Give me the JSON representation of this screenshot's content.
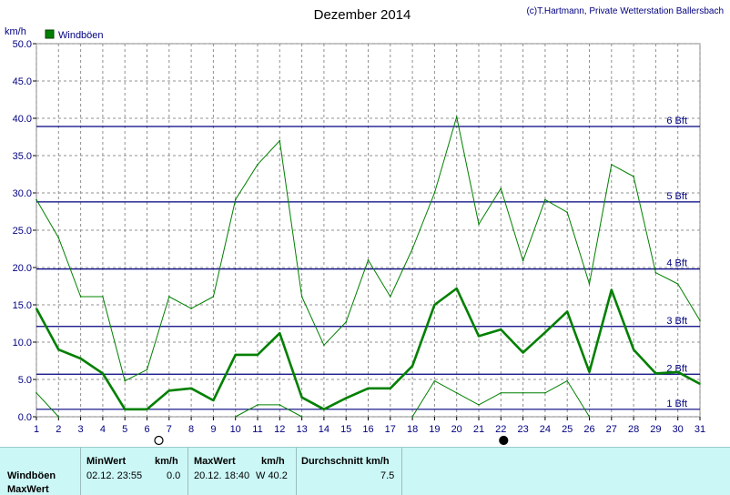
{
  "title": "Dezember 2014",
  "credit": "(c)T.Hartmann, Private Wetterstation Ballersbach",
  "chart_data": {
    "type": "line",
    "ylabel": "km/h",
    "ylim": [
      0,
      50
    ],
    "yticks": [
      "0.0",
      "5.0",
      "10.0",
      "15.0",
      "20.0",
      "25.0",
      "30.0",
      "35.0",
      "40.0",
      "45.0",
      "50.0"
    ],
    "x": [
      1,
      2,
      3,
      4,
      5,
      6,
      7,
      8,
      9,
      10,
      11,
      12,
      13,
      14,
      15,
      16,
      17,
      18,
      19,
      20,
      21,
      22,
      23,
      24,
      25,
      26,
      27,
      28,
      29,
      30,
      31
    ],
    "series": [
      {
        "name": "Windböen",
        "role": "avg",
        "color": "#008000",
        "values": [
          14.5,
          9.0,
          7.8,
          5.8,
          1.0,
          1.0,
          3.5,
          3.8,
          2.2,
          8.3,
          8.3,
          11.2,
          2.6,
          1.0,
          2.5,
          3.8,
          3.8,
          6.8,
          15.0,
          17.2,
          10.8,
          11.7,
          8.6,
          11.3,
          14.1,
          6.0,
          17.0,
          9.0,
          5.8,
          6.0,
          4.4
        ]
      },
      {
        "name": "",
        "role": "max",
        "color": "#008000",
        "values": [
          29.1,
          24.0,
          16.1,
          16.1,
          4.8,
          6.3,
          16.1,
          14.5,
          16.1,
          29.1,
          33.8,
          37.0,
          16.1,
          9.6,
          12.7,
          21.0,
          16.1,
          22.5,
          30.0,
          40.2,
          25.8,
          30.6,
          20.9,
          29.1,
          27.4,
          17.8,
          33.8,
          32.2,
          19.3,
          17.8,
          12.9
        ]
      },
      {
        "name": "",
        "role": "min",
        "color": "#008000",
        "values": [
          3.2,
          0.0,
          null,
          null,
          null,
          null,
          null,
          null,
          null,
          0.0,
          1.6,
          1.6,
          0.0,
          null,
          null,
          null,
          null,
          0.0,
          4.8,
          3.2,
          1.6,
          3.2,
          3.2,
          3.2,
          4.8,
          0.0,
          null,
          null,
          null,
          null,
          null
        ]
      }
    ],
    "beaufort": [
      {
        "label": "1 Bft",
        "value": 1.0
      },
      {
        "label": "2 Bft",
        "value": 5.7
      },
      {
        "label": "3 Bft",
        "value": 12.1
      },
      {
        "label": "4 Bft",
        "value": 19.8
      },
      {
        "label": "5 Bft",
        "value": 28.8
      },
      {
        "label": "6 Bft",
        "value": 38.9
      }
    ],
    "moon": [
      {
        "day": 6,
        "phase": "full"
      },
      {
        "day": 22,
        "phase": "new"
      }
    ],
    "grid": true,
    "legend": "top-left"
  },
  "stats": {
    "row_labels": [
      "Windböen",
      "MaxWert"
    ],
    "min_header": "MinWert",
    "min_unit": "km/h",
    "min_time": "02.12.  23:55",
    "min_value": "0.0",
    "max_header": "MaxWert",
    "max_unit": "km/h",
    "max_time": "20.12.  18:40",
    "max_value": "W 40.2",
    "avg_header": "Durchschnitt km/h",
    "avg_value": "7.5"
  }
}
